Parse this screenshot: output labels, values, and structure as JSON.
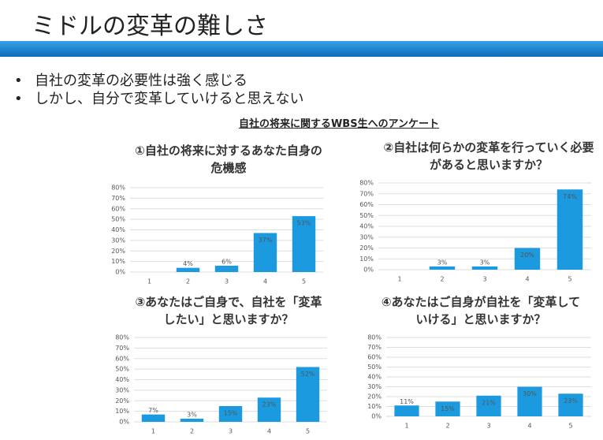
{
  "slide": {
    "title": "ミドルの変革の難しさ",
    "bullets": [
      "自社の変革の必要性は強く感じる",
      "しかし、自分で変革していけると思えない"
    ],
    "survey_title": "自社の将来に関するWBS生へのアンケート"
  },
  "chart_data": [
    {
      "type": "bar",
      "title": "①自社の将来に対するあなた自身の危機感",
      "categories": [
        "1",
        "2",
        "3",
        "4",
        "5"
      ],
      "values": [
        null,
        4,
        6,
        37,
        53
      ],
      "value_labels": [
        null,
        "4%",
        "6%",
        "37%",
        "53%"
      ],
      "color": "#1b9ae0",
      "ylim": [
        0,
        80
      ],
      "yticks": [
        {
          "value": 0,
          "label": "0%"
        },
        {
          "value": 10,
          "label": "10%"
        },
        {
          "value": 20,
          "label": "20%"
        },
        {
          "value": 30,
          "label": "30%"
        },
        {
          "value": 40,
          "label": "40%"
        },
        {
          "value": 50,
          "label": "50%"
        },
        {
          "value": 60,
          "label": "60%"
        },
        {
          "value": 70,
          "label": "70%"
        },
        {
          "value": 80,
          "label": "80%"
        }
      ],
      "grid": true
    },
    {
      "type": "bar",
      "title": "②自社は何らかの変革を行っていく必要があると思いますか？",
      "categories": [
        "1",
        "2",
        "3",
        "4",
        "5"
      ],
      "values": [
        null,
        3,
        3,
        20,
        74
      ],
      "value_labels": [
        null,
        "3%",
        "3%",
        "20%",
        "74%"
      ],
      "color": "#1b9ae0",
      "ylim": [
        0,
        80
      ],
      "yticks": [
        {
          "value": 0,
          "label": "0%"
        },
        {
          "value": 10,
          "label": "10%"
        },
        {
          "value": 20,
          "label": "20%"
        },
        {
          "value": 30,
          "label": "30%"
        },
        {
          "value": 40,
          "label": "40%"
        },
        {
          "value": 50,
          "label": "50%"
        },
        {
          "value": 60,
          "label": "60%"
        },
        {
          "value": 70,
          "label": "70%"
        },
        {
          "value": 80,
          "label": "80%"
        }
      ],
      "grid": true
    },
    {
      "type": "bar",
      "title": "③あなたはご自身で、自社を「変革したい」と思いますか？",
      "categories": [
        "1",
        "2",
        "3",
        "4",
        "5"
      ],
      "values": [
        7,
        3,
        15,
        23,
        52
      ],
      "value_labels": [
        "7%",
        "3%",
        "15%",
        "23%",
        "52%"
      ],
      "color": "#1b9ae0",
      "ylim": [
        0,
        80
      ],
      "yticks": [
        {
          "value": 0,
          "label": "0%"
        },
        {
          "value": 10,
          "label": "10%"
        },
        {
          "value": 20,
          "label": "20%"
        },
        {
          "value": 30,
          "label": "30%"
        },
        {
          "value": 40,
          "label": "40%"
        },
        {
          "value": 50,
          "label": "50%"
        },
        {
          "value": 60,
          "label": "60%"
        },
        {
          "value": 70,
          "label": "70%"
        },
        {
          "value": 80,
          "label": "80%"
        }
      ],
      "grid": true
    },
    {
      "type": "bar",
      "title": "④あなたはご自身が自社を「変革していける」と思いますか？",
      "categories": [
        "1",
        "2",
        "3",
        "4",
        "5"
      ],
      "values": [
        11,
        15,
        21,
        30,
        23
      ],
      "value_labels": [
        "11%",
        "15%",
        "21%",
        "30%",
        "23%"
      ],
      "color": "#1b9ae0",
      "ylim": [
        0,
        80
      ],
      "yticks": [
        {
          "value": 0,
          "label": "0%"
        },
        {
          "value": 10,
          "label": "10%"
        },
        {
          "value": 20,
          "label": "20%"
        },
        {
          "value": 30,
          "label": "30%"
        },
        {
          "value": 40,
          "label": "40%"
        },
        {
          "value": 50,
          "label": "50%"
        },
        {
          "value": 60,
          "label": "60%"
        },
        {
          "value": 70,
          "label": "70%"
        },
        {
          "value": 80,
          "label": "80%"
        }
      ],
      "grid": true
    }
  ]
}
